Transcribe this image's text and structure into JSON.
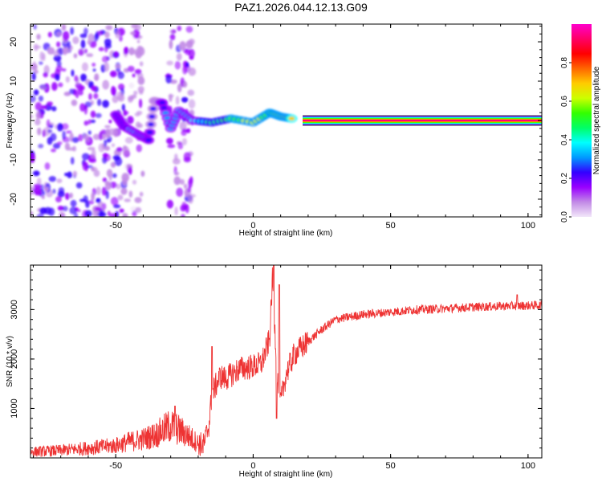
{
  "title": "PAZ1.2026.044.12.13.G09",
  "chart_data": [
    {
      "type": "heatmap",
      "title": "PAZ1.2026.044.12.13.G09",
      "xlabel": "Height of straight line (km)",
      "ylabel": "Frequency (Hz)",
      "xlim": [
        -81,
        105
      ],
      "ylim": [
        -24.5,
        24.5
      ],
      "xticks": [
        -50,
        0,
        50,
        100
      ],
      "yticks": [
        -20,
        -10,
        0,
        10,
        20
      ],
      "xticklabels": [
        "-50",
        "0",
        "50",
        "100"
      ],
      "yticklabels": [
        "-20",
        "-10",
        "0",
        "10",
        "20"
      ],
      "colorbar": {
        "label": "Normalized spectral amplitude",
        "range": [
          0.0,
          1.0
        ],
        "ticks": [
          0.0,
          0.2,
          0.4,
          0.6,
          0.8
        ],
        "ticklabels": [
          "0.0",
          "0.2",
          "0.4",
          "0.6",
          "0.8"
        ],
        "colors": [
          "#f2e6f9",
          "#c28ae6",
          "#9900ff",
          "#3300ff",
          "#0099ff",
          "#00ffff",
          "#00ff66",
          "#33ff00",
          "#ccff00",
          "#ffcc00",
          "#ff6600",
          "#ff0000",
          "#ff0066",
          "#ff00cc"
        ]
      },
      "regions": [
        {
          "name": "noise",
          "x_range": [
            -81,
            -47
          ],
          "f_range": [
            -24.5,
            24.5
          ],
          "amplitude": 0.2
        },
        {
          "name": "noise",
          "x_range": [
            -47,
            -40
          ],
          "f_range": [
            -24.5,
            24.5
          ],
          "amplitude": 0.12
        },
        {
          "name": "noise",
          "x_range": [
            -31,
            -22
          ],
          "f_range": [
            -24.5,
            24.5
          ],
          "amplitude": 0.15
        }
      ],
      "ridge": [
        {
          "x": -50,
          "f": 1.5,
          "amp": 0.25
        },
        {
          "x": -47,
          "f": -1.5,
          "amp": 0.25
        },
        {
          "x": -42,
          "f": -3.5,
          "amp": 0.3
        },
        {
          "x": -38,
          "f": -5,
          "amp": 0.25
        },
        {
          "x": -36,
          "f": 5,
          "amp": 0.2
        },
        {
          "x": -33,
          "f": 4.5,
          "amp": 0.25
        },
        {
          "x": -30,
          "f": -2,
          "amp": 0.3
        },
        {
          "x": -27,
          "f": 2.5,
          "amp": 0.3
        },
        {
          "x": -22,
          "f": 0,
          "amp": 0.35
        },
        {
          "x": -15,
          "f": -0.5,
          "amp": 0.45
        },
        {
          "x": -8,
          "f": 0.5,
          "amp": 0.55
        },
        {
          "x": 0,
          "f": -0.5,
          "amp": 0.6
        },
        {
          "x": 6,
          "f": 2,
          "amp": 0.55
        },
        {
          "x": 10,
          "f": 1,
          "amp": 0.65
        },
        {
          "x": 14,
          "f": 0.5,
          "amp": 0.7
        }
      ],
      "band": {
        "x_range": [
          18,
          105
        ],
        "frequency": 0,
        "amplitude": 0.9
      }
    },
    {
      "type": "line",
      "xlabel": "Height of straight line (km)",
      "ylabel": "SNR (10 * v/v)",
      "xlim": [
        -81,
        105
      ],
      "ylim": [
        0,
        3900
      ],
      "xticks": [
        -50,
        0,
        50,
        100
      ],
      "yticks": [
        1000,
        2000,
        3000
      ],
      "xticklabels": [
        "-50",
        "0",
        "50",
        "100"
      ],
      "yticklabels": [
        "1000",
        "2000",
        "3000"
      ],
      "series": [
        {
          "name": "SNR",
          "color": "#ee3333",
          "x": [
            -81,
            -70,
            -60,
            -50,
            -45,
            -40,
            -35,
            -30,
            -25,
            -20,
            -18,
            -16,
            -15,
            -12,
            -10,
            -5,
            0,
            3,
            6,
            7,
            8,
            9,
            10,
            12,
            15,
            20,
            25,
            30,
            40,
            50,
            60,
            70,
            80,
            90,
            100,
            105
          ],
          "y": [
            120,
            150,
            200,
            250,
            330,
            380,
            480,
            650,
            500,
            300,
            250,
            700,
            1300,
            1650,
            1600,
            1800,
            1850,
            1900,
            2400,
            3600,
            2500,
            1500,
            1100,
            1700,
            2100,
            2350,
            2600,
            2800,
            2900,
            2950,
            3000,
            3020,
            3050,
            3070,
            3080,
            3090
          ],
          "spikes": [
            {
              "x": 7.5,
              "y": 3900
            },
            {
              "x": 9.5,
              "y": 3500
            },
            {
              "x": 8.5,
              "y": 800
            },
            {
              "x": -15,
              "y": 2250
            },
            {
              "x": -28.5,
              "y": 1050
            },
            {
              "x": 96,
              "y": 3300
            }
          ]
        }
      ]
    }
  ]
}
